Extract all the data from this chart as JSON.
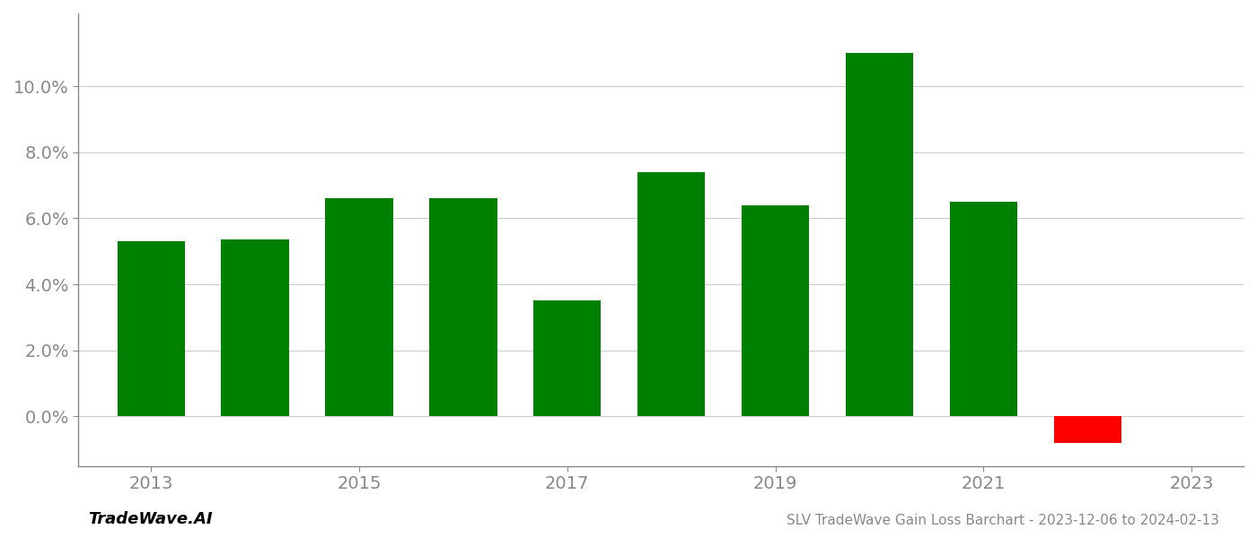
{
  "years": [
    2013,
    2014,
    2015,
    2016,
    2017,
    2018,
    2019,
    2020,
    2021,
    2022
  ],
  "values": [
    0.053,
    0.0535,
    0.066,
    0.066,
    0.035,
    0.074,
    0.064,
    0.11,
    0.065,
    -0.008
  ],
  "bar_colors": [
    "#008000",
    "#008000",
    "#008000",
    "#008000",
    "#008000",
    "#008000",
    "#008000",
    "#008000",
    "#008000",
    "#ff0000"
  ],
  "title": "SLV TradeWave Gain Loss Barchart - 2023-12-06 to 2024-02-13",
  "watermark": "TradeWave.AI",
  "ylim_min": -0.015,
  "ylim_max": 0.122,
  "background_color": "#ffffff",
  "grid_color": "#cccccc",
  "axis_label_color": "#888888",
  "bar_width": 0.65,
  "tick_labels": [
    "2013",
    "2015",
    "2017",
    "2019",
    "2021",
    "2023"
  ],
  "tick_year_positions": [
    2013,
    2015,
    2017,
    2019,
    2021,
    2023
  ]
}
